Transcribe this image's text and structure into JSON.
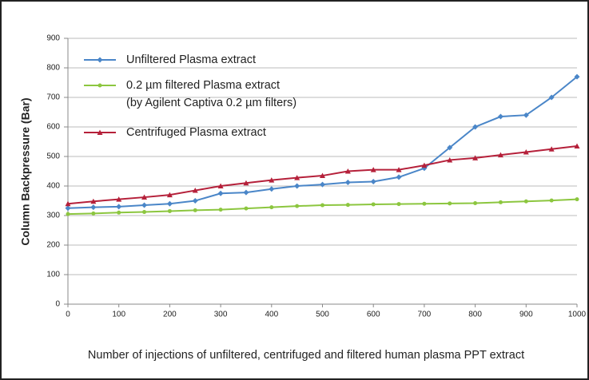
{
  "chart_data": {
    "type": "line",
    "x_label": "Number of injections of unfiltered, centrifuged and filtered human plasma PPT extract",
    "y_label": "Column Backpressure (Bar)",
    "x": [
      0,
      50,
      100,
      150,
      200,
      250,
      300,
      350,
      400,
      450,
      500,
      550,
      600,
      650,
      700,
      750,
      800,
      850,
      900,
      950,
      1000
    ],
    "series": [
      {
        "name": "Unfiltered Plasma extract",
        "color": "#4a86c8",
        "marker": "diamond",
        "values": [
          325,
          328,
          330,
          335,
          340,
          350,
          375,
          378,
          390,
          400,
          405,
          412,
          415,
          430,
          460,
          530,
          600,
          635,
          640,
          700,
          770
        ]
      },
      {
        "name": "0.2 µm filtered Plasma extract (by Agilent Captiva 0.2 µm filters)",
        "color": "#8cc63f",
        "marker": "circle",
        "values": [
          305,
          307,
          310,
          312,
          315,
          318,
          320,
          324,
          328,
          332,
          335,
          336,
          338,
          339,
          340,
          341,
          342,
          345,
          348,
          351,
          355
        ]
      },
      {
        "name": "Centrifuged Plasma extract",
        "color": "#b5203a",
        "marker": "triangle",
        "values": [
          340,
          348,
          355,
          362,
          370,
          385,
          400,
          410,
          420,
          428,
          435,
          450,
          455,
          455,
          470,
          488,
          495,
          505,
          515,
          525,
          535
        ]
      }
    ],
    "xlim": [
      0,
      1000
    ],
    "xticks": [
      0,
      100,
      200,
      300,
      400,
      500,
      600,
      700,
      800,
      900,
      1000
    ],
    "ylim": [
      0,
      900
    ],
    "yticks": [
      0,
      100,
      200,
      300,
      400,
      500,
      600,
      700,
      800,
      900
    ],
    "grid": true,
    "legend": "upper left"
  }
}
